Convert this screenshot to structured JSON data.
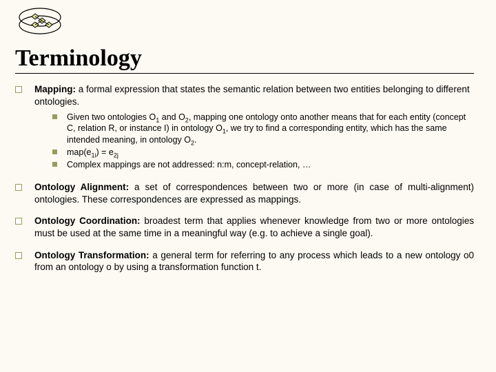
{
  "colors": {
    "background": "#fcfaf2",
    "text": "#000000",
    "bullet_olive": "#9a9a60",
    "rule": "#000000"
  },
  "typography": {
    "title_font": "Times New Roman",
    "title_size_pt": 34,
    "title_weight": "bold",
    "body_font": "Verdana",
    "body_size_pt": 13.5,
    "sub_body_size_pt": 12.5
  },
  "logo": {
    "type": "venn-diagram",
    "node_fill": "#e0e09a",
    "node_stroke": "#000000",
    "ellipse_stroke": "#000000"
  },
  "title": "Terminology",
  "items": [
    {
      "term": "Mapping:",
      "definition_html": " a formal expression that states the semantic relation between two entities belonging to different ontologies.",
      "justify": false,
      "sub": [
        "Given two ontologies O<sub>1</sub> and O<sub>2</sub>, mapping one ontology onto another means that for each entity (concept C, relation R, or instance I) in ontology O<sub>1</sub>, we try to find a corresponding entity, which has the same intended meaning, in ontology O<sub>2</sub>.",
        "map(e<sub>1i</sub>) = e<sub>2j</sub>",
        "Complex mappings are not addressed: n:m, concept-relation, …"
      ]
    },
    {
      "term": "Ontology Alignment:",
      "definition_html": " a set of correspondences between two or more (in case of multi-alignment) ontologies. These correspondences are expressed as mappings.",
      "justify": true,
      "sub": []
    },
    {
      "term": "Ontology Coordination:",
      "definition_html": " broadest term that applies whenever knowledge from two or more ontologies must be used at the same time in a meaningful way (e.g. to achieve a single goal).",
      "justify": true,
      "sub": []
    },
    {
      "term": "Ontology Transformation:",
      "definition_html": " a general term for referring to any process which leads to a new ontology o0 from an ontology o by using a transformation function t.",
      "justify": true,
      "sub": []
    }
  ]
}
